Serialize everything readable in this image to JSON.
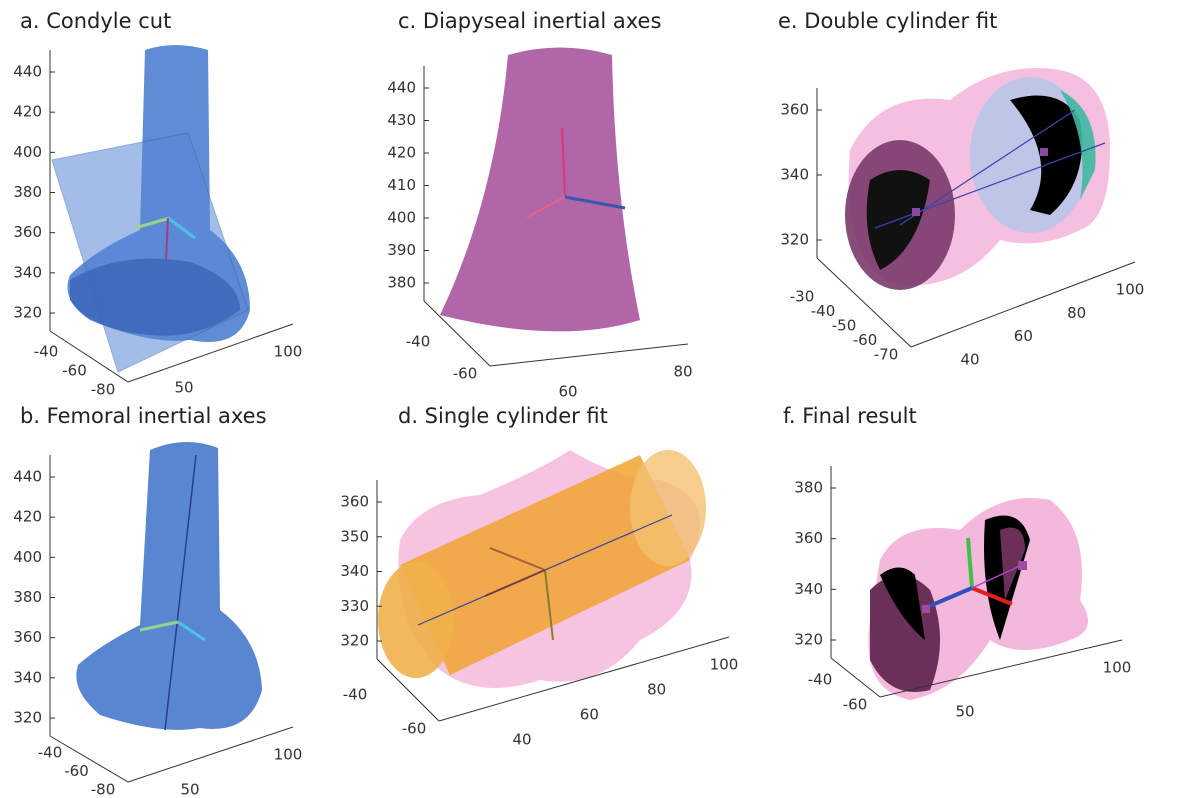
{
  "panels": [
    {
      "title": "a. Condyle cut",
      "zticks": [
        440,
        420,
        400,
        380,
        360,
        340,
        320
      ],
      "yticks": [
        -40,
        -60,
        -80
      ],
      "xticks": [
        50,
        100
      ]
    },
    {
      "title": "b. Femoral inertial axes",
      "zticks": [
        440,
        420,
        400,
        380,
        360,
        340,
        320
      ],
      "yticks": [
        -40,
        -60,
        -80
      ],
      "xticks": [
        50,
        100
      ]
    },
    {
      "title": "c. Diapyseal inertial axes",
      "zticks": [
        440,
        430,
        420,
        410,
        400,
        390,
        380
      ],
      "yticks": [
        -40,
        -60
      ],
      "xticks": [
        60,
        80
      ]
    },
    {
      "title": "d. Single cylinder fit",
      "zticks": [
        360,
        350,
        340,
        330,
        320
      ],
      "yticks": [
        -40,
        -60
      ],
      "xticks": [
        40,
        60,
        80,
        100
      ]
    },
    {
      "title": "e. Double cylinder fit",
      "zticks": [
        360,
        340,
        320
      ],
      "yticks": [
        -30,
        -40,
        -50,
        -60,
        -70
      ],
      "xticks": [
        40,
        60,
        80,
        100
      ]
    },
    {
      "title": "f. Final result",
      "zticks": [
        380,
        360,
        340,
        320
      ],
      "yticks": [
        -40,
        -60
      ],
      "xticks": [
        50,
        100
      ]
    }
  ]
}
